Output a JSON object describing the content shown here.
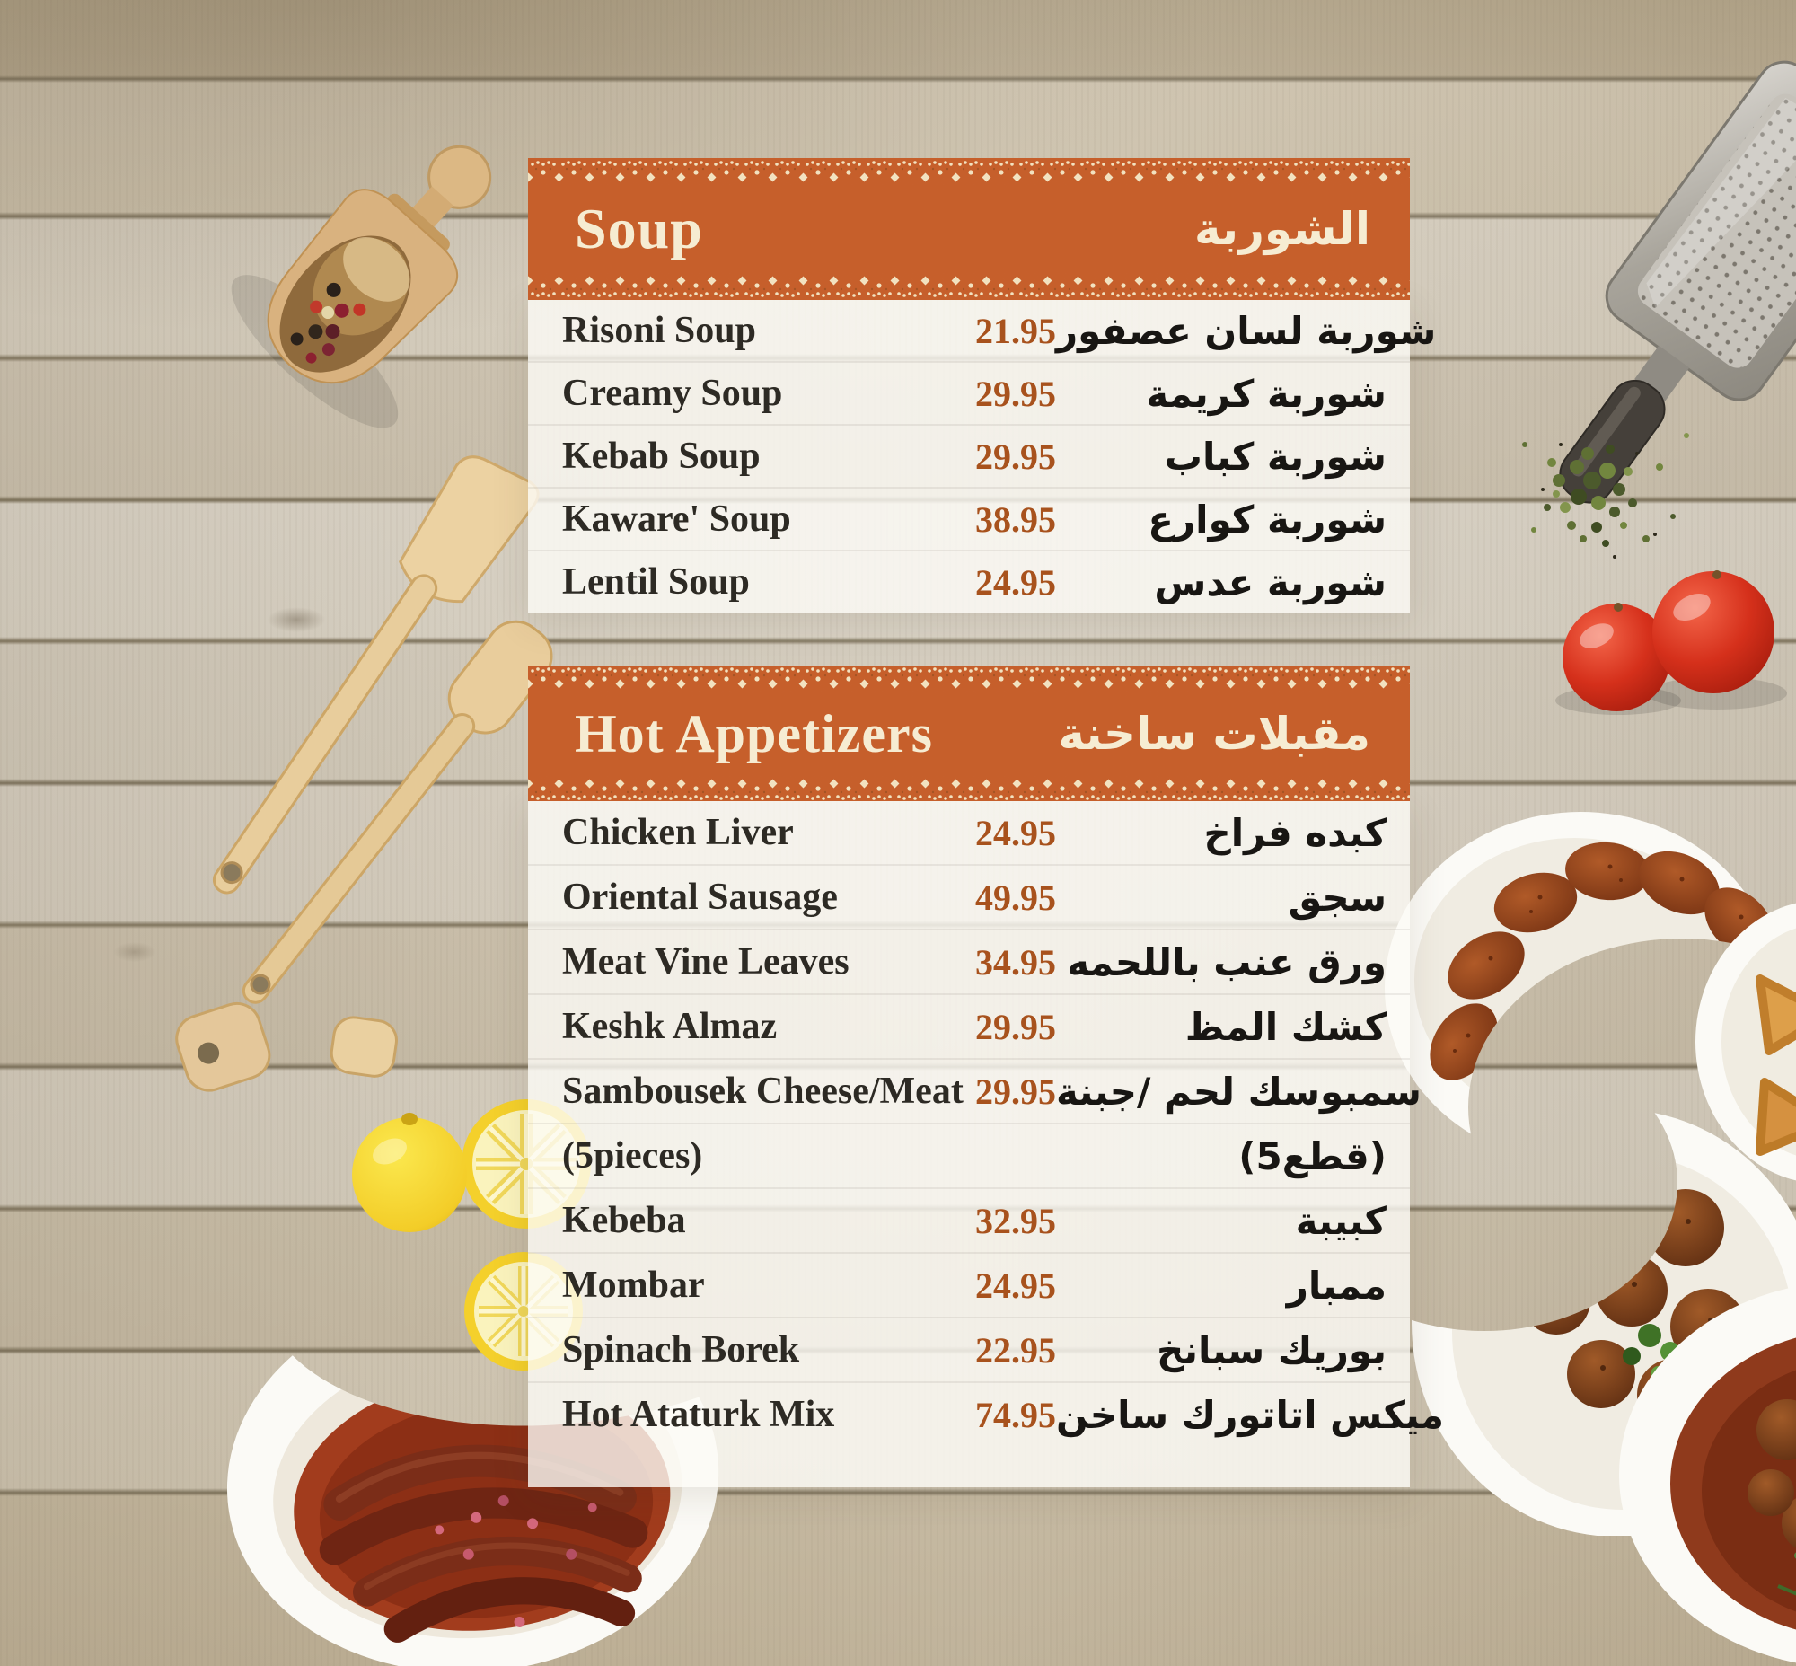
{
  "colors": {
    "accent_orange": "#c65f2b",
    "banner_text_cream": "#f6ecd2",
    "lace_cream": "#f2e2c0",
    "price_color": "#a8521d",
    "item_text": "#2d2a24"
  },
  "sections": [
    {
      "title_en": "Soup",
      "title_ar": "الشوربة",
      "items": [
        {
          "name_en": "Risoni Soup",
          "price": "21.95",
          "name_ar": "شوربة لسان عصفور"
        },
        {
          "name_en": "Creamy Soup",
          "price": "29.95",
          "name_ar": "شوربة كريمة"
        },
        {
          "name_en": "Kebab Soup",
          "price": "29.95",
          "name_ar": "شوربة كباب"
        },
        {
          "name_en": "Kaware' Soup",
          "price": "38.95",
          "name_ar": "شوربة كوارع"
        },
        {
          "name_en": "Lentil Soup",
          "price": "24.95",
          "name_ar": "شوربة عدس"
        }
      ]
    },
    {
      "title_en": "Hot Appetizers",
      "title_ar": "مقبلات ساخنة",
      "items": [
        {
          "name_en": "Chicken Liver",
          "price": "24.95",
          "name_ar": "كبده فراخ"
        },
        {
          "name_en": "Oriental Sausage",
          "price": "49.95",
          "name_ar": "سجق"
        },
        {
          "name_en": "Meat Vine Leaves",
          "price": "34.95",
          "name_ar": "ورق عنب باللحمه"
        },
        {
          "name_en": "Keshk Almaz",
          "price": "29.95",
          "name_ar": "كشك المظ"
        },
        {
          "name_en": "Sambousek Cheese/Meat",
          "price": "29.95",
          "name_ar": "سمبوسك لحم /جبنة",
          "note_en": "(5pieces)",
          "note_ar": "(5قطع)"
        },
        {
          "name_en": "Kebeba",
          "price": "32.95",
          "name_ar": "كبيبة"
        },
        {
          "name_en": "Mombar",
          "price": "24.95",
          "name_ar": "ممبار"
        },
        {
          "name_en": "Spinach Borek",
          "price": "22.95",
          "name_ar": "بوريك سبانخ"
        },
        {
          "name_en": "Hot Ataturk Mix",
          "price": "74.95",
          "name_ar": "ميكس اتاتورك ساخن"
        }
      ]
    }
  ],
  "decor": [
    "wooden-scoop",
    "wooden-spatulas",
    "lemon-slices",
    "sausage-plate",
    "cheese-grater",
    "dried-herbs",
    "tomatoes",
    "kibbeh-plate",
    "samosa-plate",
    "meatball-plate",
    "stew-plate"
  ]
}
